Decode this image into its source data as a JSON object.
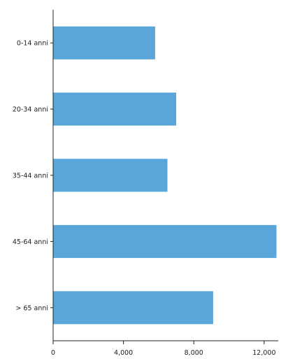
{
  "chart_data": {
    "type": "bar",
    "orientation": "horizontal",
    "categories": [
      "0-14 anni",
      "20-34 anni",
      "35-44 anni",
      "45-64 anni",
      "> 65 anni"
    ],
    "values": [
      5800,
      7000,
      6500,
      12700,
      9100
    ],
    "title": "",
    "xlabel": "",
    "ylabel": "",
    "xlim": [
      0,
      12800
    ],
    "x_ticks": [
      0,
      4000,
      8000,
      12000
    ],
    "x_tick_labels": [
      "0",
      "4,000",
      "8,000",
      "12,000"
    ],
    "grid": false,
    "legend": "none",
    "bar_color": "#5aa5d9",
    "axis_color": "#222222"
  }
}
